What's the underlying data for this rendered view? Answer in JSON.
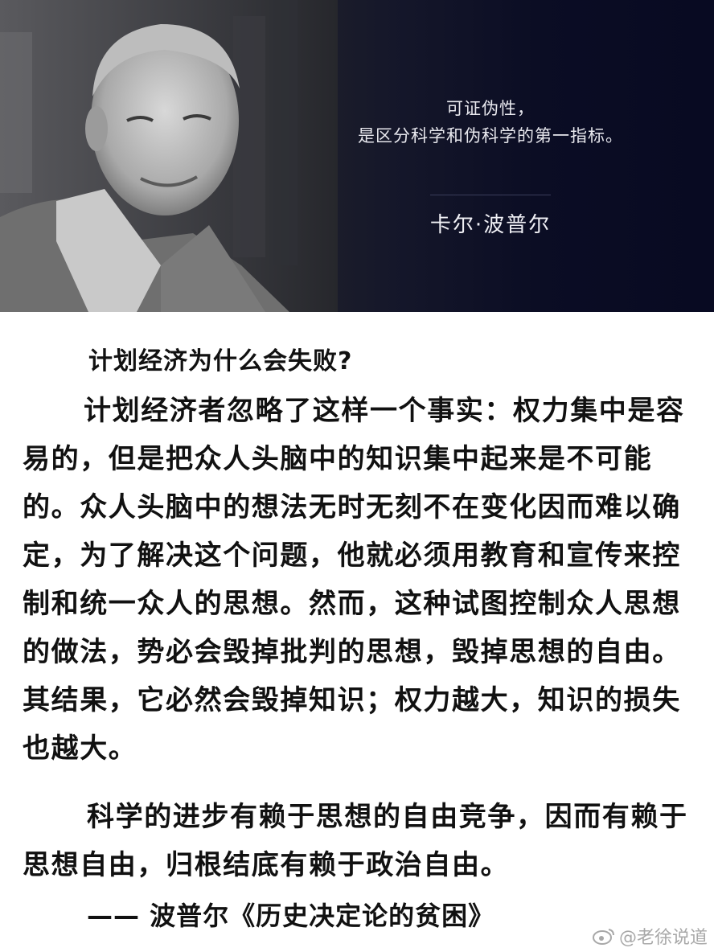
{
  "banner": {
    "quote_line1": "可证伪性，",
    "quote_line2": "是区分科学和伪科学的第一指标。",
    "author": "卡尔·波普尔",
    "photo": "portrait-of-elderly-man"
  },
  "article": {
    "heading": "计划经济为什么会失败?",
    "paragraph1": "计划经济者忽略了这样一个事实：权力集中是容易的，但是把众人头脑中的知识集中起来是不可能的。众人头脑中的想法无时无刻不在变化因而难以确定，为了解决这个问题，他就必须用教育和宣传来控制和统一众人的思想。然而，这种试图控制众人思想的做法，势必会毁掉批判的思想，毁掉思想的自由。其结果，它必然会毁掉知识；权力越大，知识的损失也越大。",
    "paragraph2": "科学的进步有赖于思想的自由竞争，因而有赖于思想自由，归根结底有赖于政治自由。",
    "source": "—— 波普尔《历史决定论的贫困》"
  },
  "watermark": {
    "icon": "weibo-icon",
    "text": "@老徐说道"
  }
}
